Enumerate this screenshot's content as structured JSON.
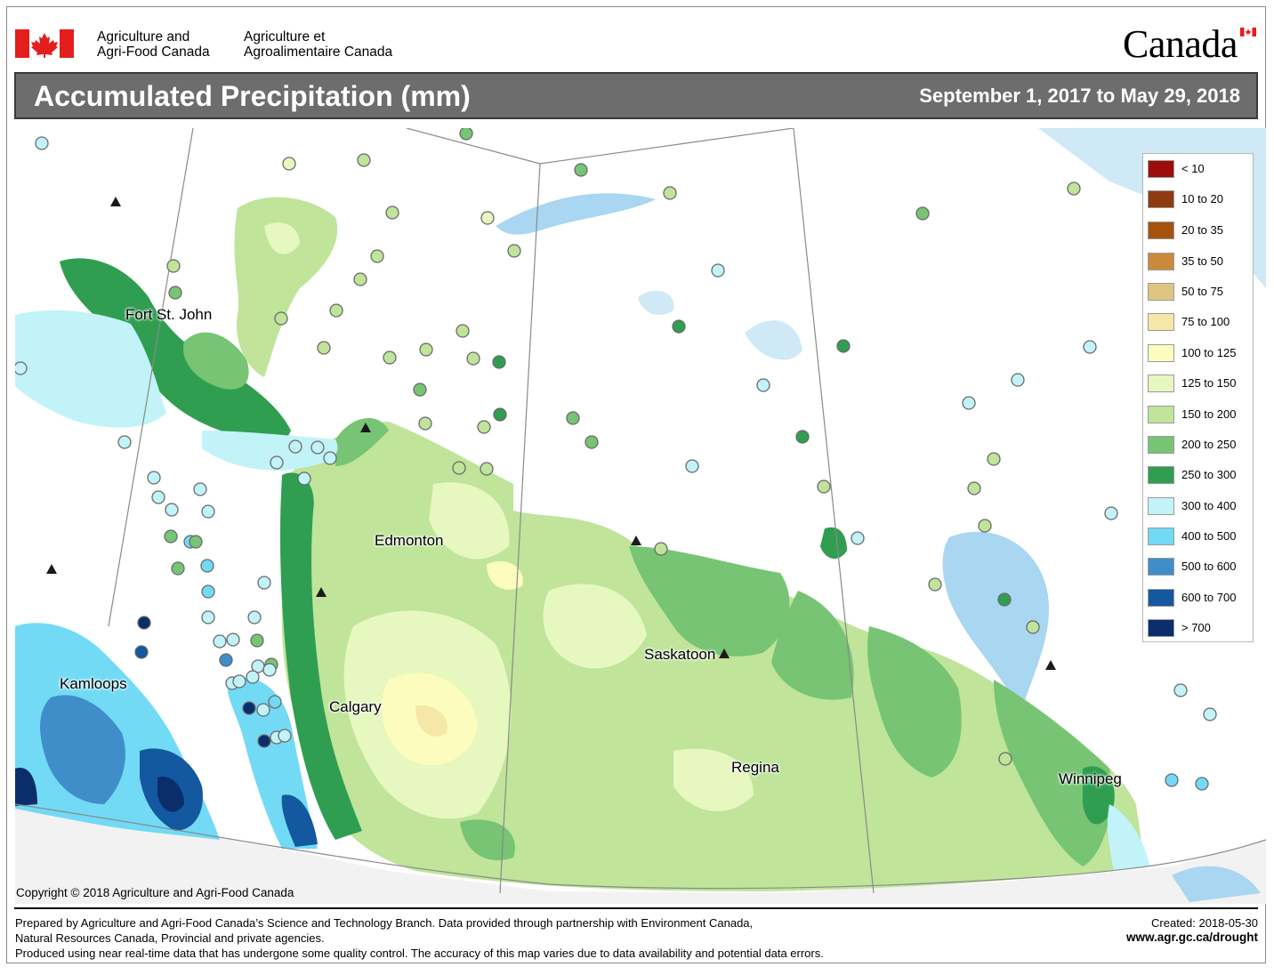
{
  "header": {
    "department_en_line1": "Agriculture and",
    "department_en_line2": "Agri-Food Canada",
    "department_fr_line1": "Agriculture et",
    "department_fr_line2": "Agroalimentaire Canada",
    "wordmark": "Canada"
  },
  "title": {
    "main": "Accumulated Precipitation (mm)",
    "date_range": "September 1, 2017 to May 29, 2018"
  },
  "legend": {
    "items": [
      {
        "label": "< 10",
        "color": "#9c0d0b"
      },
      {
        "label": "10 to 20",
        "color": "#8e3b0f"
      },
      {
        "label": "20 to 35",
        "color": "#a5520f"
      },
      {
        "label": "35 to 50",
        "color": "#c98a3c"
      },
      {
        "label": "50 to 75",
        "color": "#dfc583"
      },
      {
        "label": "75 to 100",
        "color": "#f6e6a8"
      },
      {
        "label": "100 to 125",
        "color": "#fcfcbf"
      },
      {
        "label": "125 to 150",
        "color": "#e6f7c0"
      },
      {
        "label": "150 to 200",
        "color": "#bfe49a"
      },
      {
        "label": "200 to 250",
        "color": "#76c474"
      },
      {
        "label": "250 to 300",
        "color": "#2f9e50"
      },
      {
        "label": "300 to 400",
        "color": "#c1f3f8"
      },
      {
        "label": "400 to 500",
        "color": "#72daf5"
      },
      {
        "label": "500 to 600",
        "color": "#3f8ec9"
      },
      {
        "label": "600 to 700",
        "color": "#1458a0"
      },
      {
        "label": "> 700",
        "color": "#0b2e6b"
      }
    ]
  },
  "cities": [
    {
      "name": "Fort St. John"
    },
    {
      "name": "Edmonton"
    },
    {
      "name": "Kamloops"
    },
    {
      "name": "Calgary"
    },
    {
      "name": "Saskatoon"
    },
    {
      "name": "Regina"
    },
    {
      "name": "Winnipeg"
    }
  ],
  "footer": {
    "copyright": "Copyright © 2018 Agriculture and Agri-Food Canada",
    "line1": "Prepared by Agriculture and Agri-Food Canada’s Science and Technology Branch. Data provided through partnership with Environment Canada,",
    "line2": "Natural Resources Canada, Provincial and private agencies.",
    "line3": "Produced using near real-time data that has undergone some quality control. The accuracy of this map varies due to data availability and potential data errors.",
    "created": "Created: 2018-05-30",
    "website": "www.agr.gc.ca/drought"
  }
}
